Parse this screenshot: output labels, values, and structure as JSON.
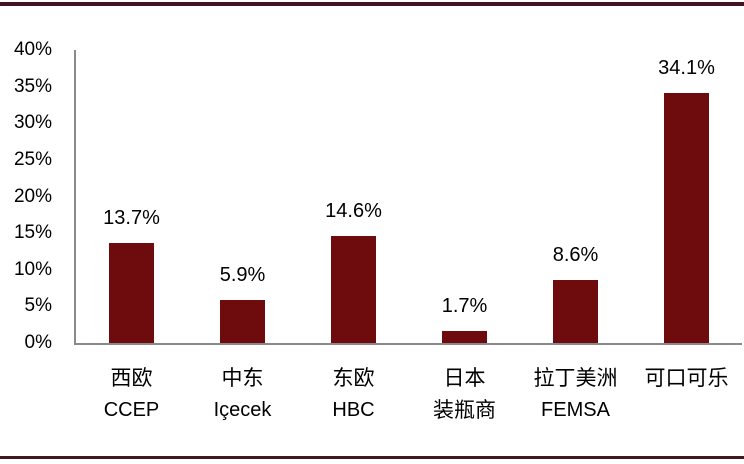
{
  "chart_data": {
    "type": "bar",
    "title": "",
    "xlabel": "",
    "ylabel": "",
    "categories": [
      {
        "line1": "西欧",
        "line2": "CCEP",
        "line2_script": "latin"
      },
      {
        "line1": "中东",
        "line2": "Içecek",
        "line2_script": "latin"
      },
      {
        "line1": "东欧",
        "line2": "HBC",
        "line2_script": "latin"
      },
      {
        "line1": "日本",
        "line2": "装瓶商",
        "line2_script": "cjk"
      },
      {
        "line1": "拉丁美洲",
        "line2": "FEMSA",
        "line2_script": "latin"
      },
      {
        "line1": "可口可乐",
        "line2": "",
        "line2_script": "latin"
      }
    ],
    "values": [
      13.7,
      5.9,
      14.6,
      1.7,
      8.6,
      34.1
    ],
    "data_labels": [
      "13.7%",
      "5.9%",
      "14.6%",
      "1.7%",
      "8.6%",
      "34.1%"
    ],
    "ylim": [
      0,
      40
    ],
    "y_tick_step": 5,
    "y_ticks": [
      "0%",
      "5%",
      "10%",
      "15%",
      "20%",
      "25%",
      "30%",
      "35%",
      "40%"
    ],
    "grid": false,
    "legend": "none"
  },
  "style": {
    "bar_color": "#6E0B0C",
    "accent_rule_color": "#41161D",
    "axis_color": "#8A8A8A",
    "text_color": "#000000",
    "background": "#FFFFFF"
  }
}
